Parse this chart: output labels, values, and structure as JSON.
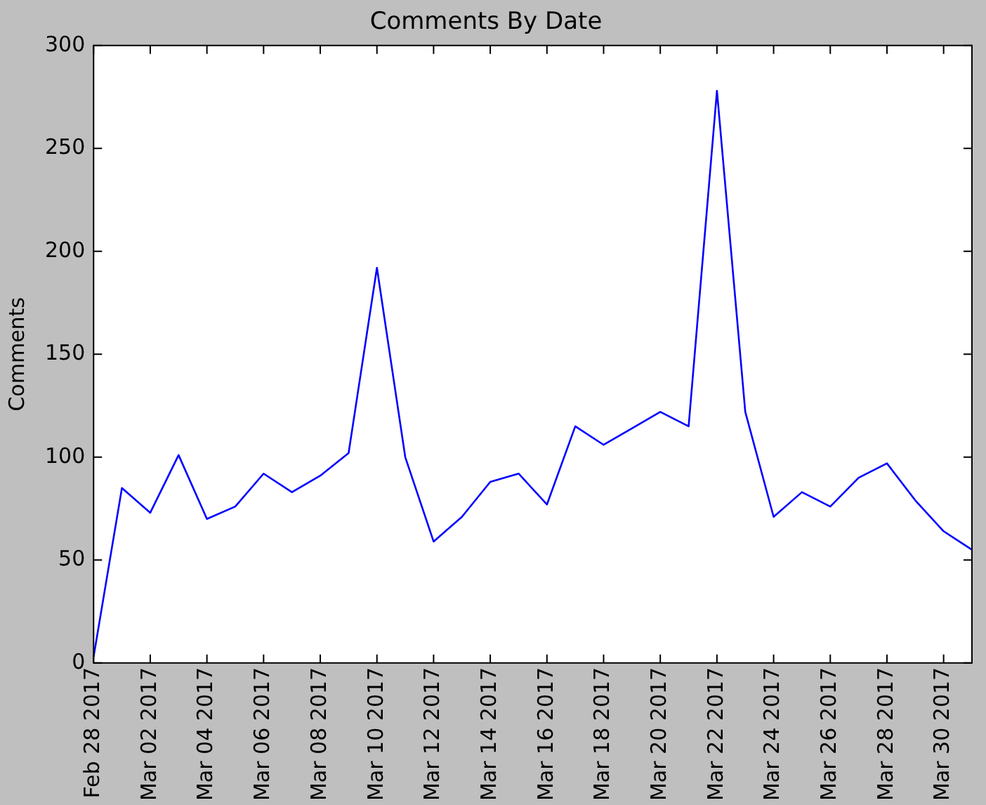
{
  "chart_data": {
    "type": "line",
    "title": "Comments By Date",
    "ylabel": "Comments",
    "x": [
      "2017-02-28",
      "2017-03-01",
      "2017-03-02",
      "2017-03-03",
      "2017-03-04",
      "2017-03-05",
      "2017-03-06",
      "2017-03-07",
      "2017-03-08",
      "2017-03-09",
      "2017-03-10",
      "2017-03-11",
      "2017-03-12",
      "2017-03-13",
      "2017-03-14",
      "2017-03-15",
      "2017-03-16",
      "2017-03-17",
      "2017-03-18",
      "2017-03-19",
      "2017-03-20",
      "2017-03-21",
      "2017-03-22",
      "2017-03-23",
      "2017-03-24",
      "2017-03-25",
      "2017-03-26",
      "2017-03-27",
      "2017-03-28",
      "2017-03-29",
      "2017-03-30",
      "2017-03-31"
    ],
    "series": [
      {
        "color": "#0000ff",
        "values": [
          3,
          85,
          73,
          101,
          70,
          76,
          92,
          83,
          91,
          102,
          192,
          100,
          59,
          71,
          88,
          92,
          77,
          115,
          106,
          114,
          122,
          115,
          278,
          122,
          71,
          83,
          76,
          90,
          97,
          79,
          64,
          55
        ]
      }
    ],
    "xlim": [
      "2017-02-28",
      "2017-03-31"
    ],
    "xticks": [
      {
        "value": "2017-02-28",
        "label": "Feb 28 2017"
      },
      {
        "value": "2017-03-02",
        "label": "Mar 02 2017"
      },
      {
        "value": "2017-03-04",
        "label": "Mar 04 2017"
      },
      {
        "value": "2017-03-06",
        "label": "Mar 06 2017"
      },
      {
        "value": "2017-03-08",
        "label": "Mar 08 2017"
      },
      {
        "value": "2017-03-10",
        "label": "Mar 10 2017"
      },
      {
        "value": "2017-03-12",
        "label": "Mar 12 2017"
      },
      {
        "value": "2017-03-14",
        "label": "Mar 14 2017"
      },
      {
        "value": "2017-03-16",
        "label": "Mar 16 2017"
      },
      {
        "value": "2017-03-18",
        "label": "Mar 18 2017"
      },
      {
        "value": "2017-03-20",
        "label": "Mar 20 2017"
      },
      {
        "value": "2017-03-22",
        "label": "Mar 22 2017"
      },
      {
        "value": "2017-03-24",
        "label": "Mar 24 2017"
      },
      {
        "value": "2017-03-26",
        "label": "Mar 26 2017"
      },
      {
        "value": "2017-03-28",
        "label": "Mar 28 2017"
      },
      {
        "value": "2017-03-30",
        "label": "Mar 30 2017"
      }
    ],
    "ylim": [
      0,
      300
    ],
    "yticks": [
      0,
      50,
      100,
      150,
      200,
      250,
      300
    ],
    "grid": false,
    "legend": false,
    "marker": "none",
    "line_style": "solid"
  }
}
